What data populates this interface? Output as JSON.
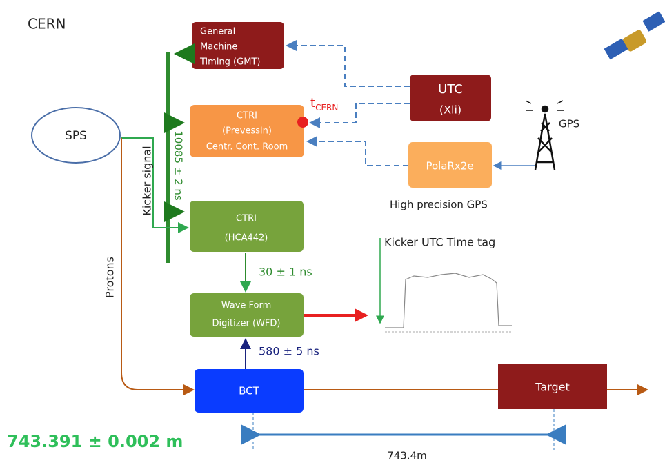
{
  "title": "CERN",
  "nodes": {
    "gmt": {
      "lines": [
        "General",
        "Machine",
        "Timing (GMT)"
      ]
    },
    "utc": {
      "lines": [
        "UTC",
        "(Xli)"
      ]
    },
    "sps": {
      "label": "SPS"
    },
    "ctri_prevessin": {
      "lines": [
        "CTRI",
        "(Prevessin)",
        "Centr. Cont. Room"
      ]
    },
    "polarx": {
      "label": "PolaRx2e"
    },
    "ctri_hca": {
      "lines": [
        "CTRI",
        "(HCA442)"
      ]
    },
    "wfd": {
      "lines": [
        "Wave Form",
        "Digitizer (WFD)"
      ]
    },
    "bct": {
      "label": "BCT"
    },
    "target": {
      "label": "Target"
    }
  },
  "labels": {
    "t_cern": {
      "main": "t",
      "sub": "CERN"
    },
    "gps": "GPS",
    "high_precision_gps": "High precision GPS",
    "kicker_signal": "Kicker signal",
    "delay_10085": "10085 ± 2 ns",
    "kicker_time_tag": "Kicker UTC Time tag",
    "protons": "Protons",
    "delay_30": "30 ± 1 ns",
    "delay_580": "580 ± 5 ns",
    "distance_precise": "743.391 ± 0.002 m",
    "distance": "743.4m"
  }
}
